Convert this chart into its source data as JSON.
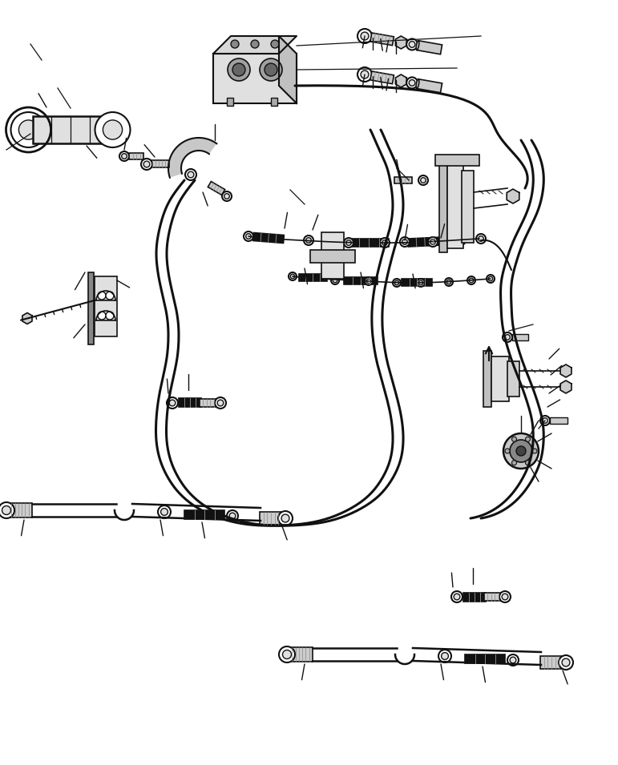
{
  "background_color": "#ffffff",
  "lc": "#111111",
  "lw": 1.2,
  "hlw": 2.2,
  "figsize": [
    7.71,
    9.55
  ],
  "dpi": 100,
  "gray_fill": "#cccccc",
  "dark_gray": "#888888",
  "black_fill": "#111111",
  "white_fill": "#ffffff",
  "light_gray": "#e0e0e0"
}
